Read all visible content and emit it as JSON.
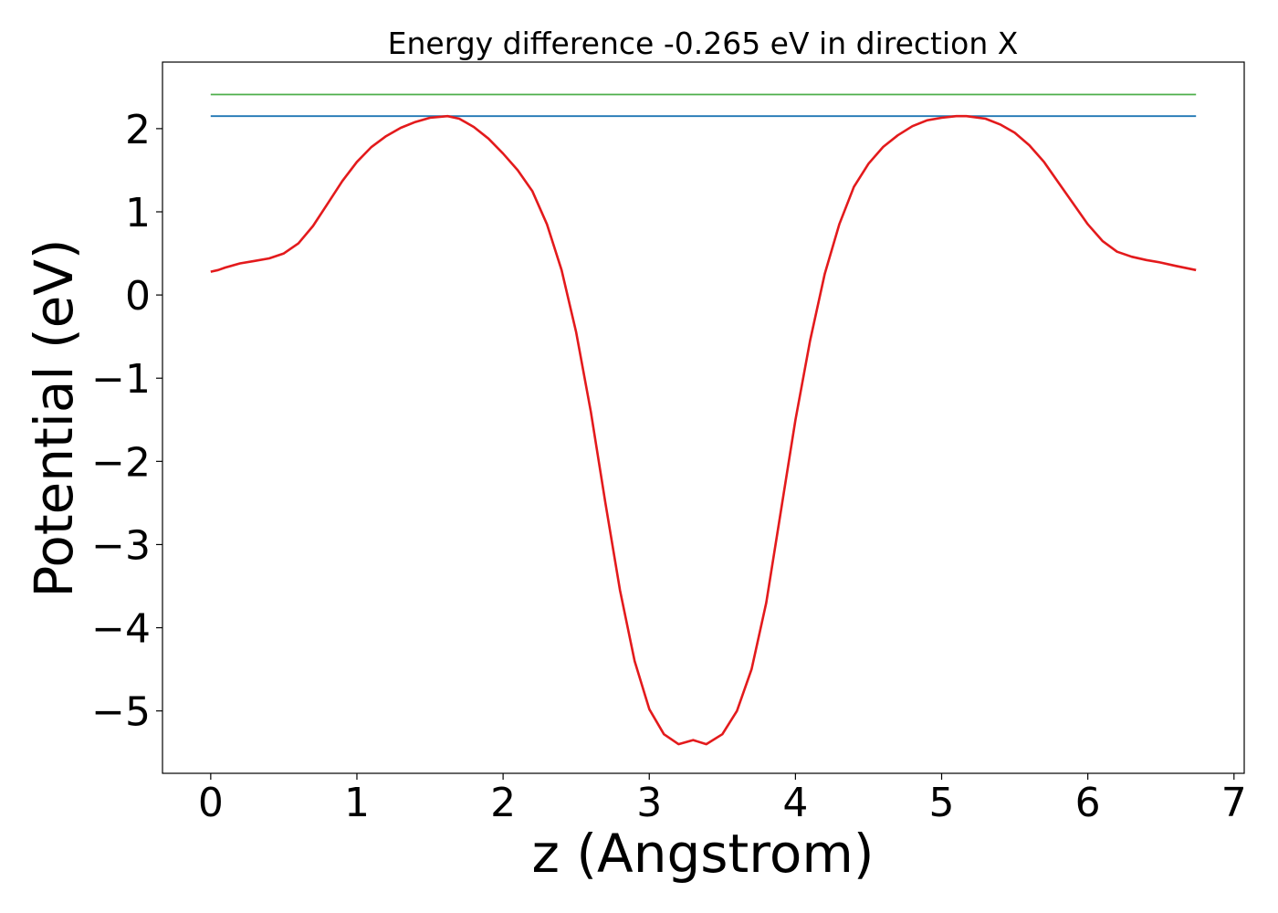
{
  "chart_data": {
    "type": "line",
    "title": "Energy difference -0.265 eV in direction X",
    "xlabel": "z (Angstrom)",
    "ylabel": "Potential (eV)",
    "xlim": [
      -0.33,
      7.07
    ],
    "ylim": [
      -5.75,
      2.8
    ],
    "xticks": [
      0,
      1,
      2,
      3,
      4,
      5,
      6,
      7
    ],
    "xtick_labels": [
      "0",
      "1",
      "2",
      "3",
      "4",
      "5",
      "6",
      "7"
    ],
    "yticks": [
      2,
      1,
      0,
      -1,
      -2,
      -3,
      -4,
      -5
    ],
    "ytick_labels": [
      "2",
      "1",
      "0",
      "−1",
      "−2",
      "−3",
      "−4",
      "−5"
    ],
    "grid": false,
    "colors": {
      "potential": "#e31a1c",
      "upper_level": "#4daf4a",
      "lower_level": "#1f77b4"
    },
    "series": [
      {
        "key": "potential",
        "x": [
          0.0,
          0.05,
          0.1,
          0.2,
          0.3,
          0.4,
          0.5,
          0.6,
          0.7,
          0.8,
          0.9,
          1.0,
          1.1,
          1.2,
          1.3,
          1.4,
          1.5,
          1.62,
          1.7,
          1.8,
          1.9,
          2.0,
          2.1,
          2.2,
          2.3,
          2.4,
          2.5,
          2.6,
          2.7,
          2.8,
          2.9,
          3.0,
          3.1,
          3.2,
          3.3,
          3.39,
          3.5,
          3.6,
          3.7,
          3.8,
          3.9,
          4.0,
          4.1,
          4.2,
          4.3,
          4.4,
          4.5,
          4.6,
          4.7,
          4.8,
          4.9,
          5.0,
          5.1,
          5.17,
          5.3,
          5.4,
          5.5,
          5.6,
          5.7,
          5.8,
          5.9,
          6.0,
          6.1,
          6.2,
          6.3,
          6.4,
          6.5,
          6.6,
          6.74
        ],
        "y": [
          0.28,
          0.3,
          0.33,
          0.38,
          0.41,
          0.44,
          0.5,
          0.62,
          0.83,
          1.1,
          1.37,
          1.6,
          1.78,
          1.91,
          2.01,
          2.08,
          2.13,
          2.15,
          2.12,
          2.02,
          1.88,
          1.7,
          1.5,
          1.25,
          0.85,
          0.3,
          -0.45,
          -1.4,
          -2.5,
          -3.55,
          -4.4,
          -4.98,
          -5.28,
          -5.4,
          -5.35,
          -5.4,
          -5.28,
          -5.0,
          -4.5,
          -3.7,
          -2.6,
          -1.5,
          -0.55,
          0.25,
          0.85,
          1.3,
          1.58,
          1.78,
          1.92,
          2.03,
          2.1,
          2.13,
          2.15,
          2.15,
          2.12,
          2.05,
          1.95,
          1.8,
          1.6,
          1.35,
          1.1,
          0.85,
          0.65,
          0.52,
          0.46,
          0.42,
          0.39,
          0.35,
          0.3
        ]
      },
      {
        "key": "upper_level",
        "x": [
          0.0,
          6.74
        ],
        "y": [
          2.41,
          2.41
        ]
      },
      {
        "key": "lower_level",
        "x": [
          0.0,
          6.74
        ],
        "y": [
          2.15,
          2.15
        ]
      }
    ]
  }
}
